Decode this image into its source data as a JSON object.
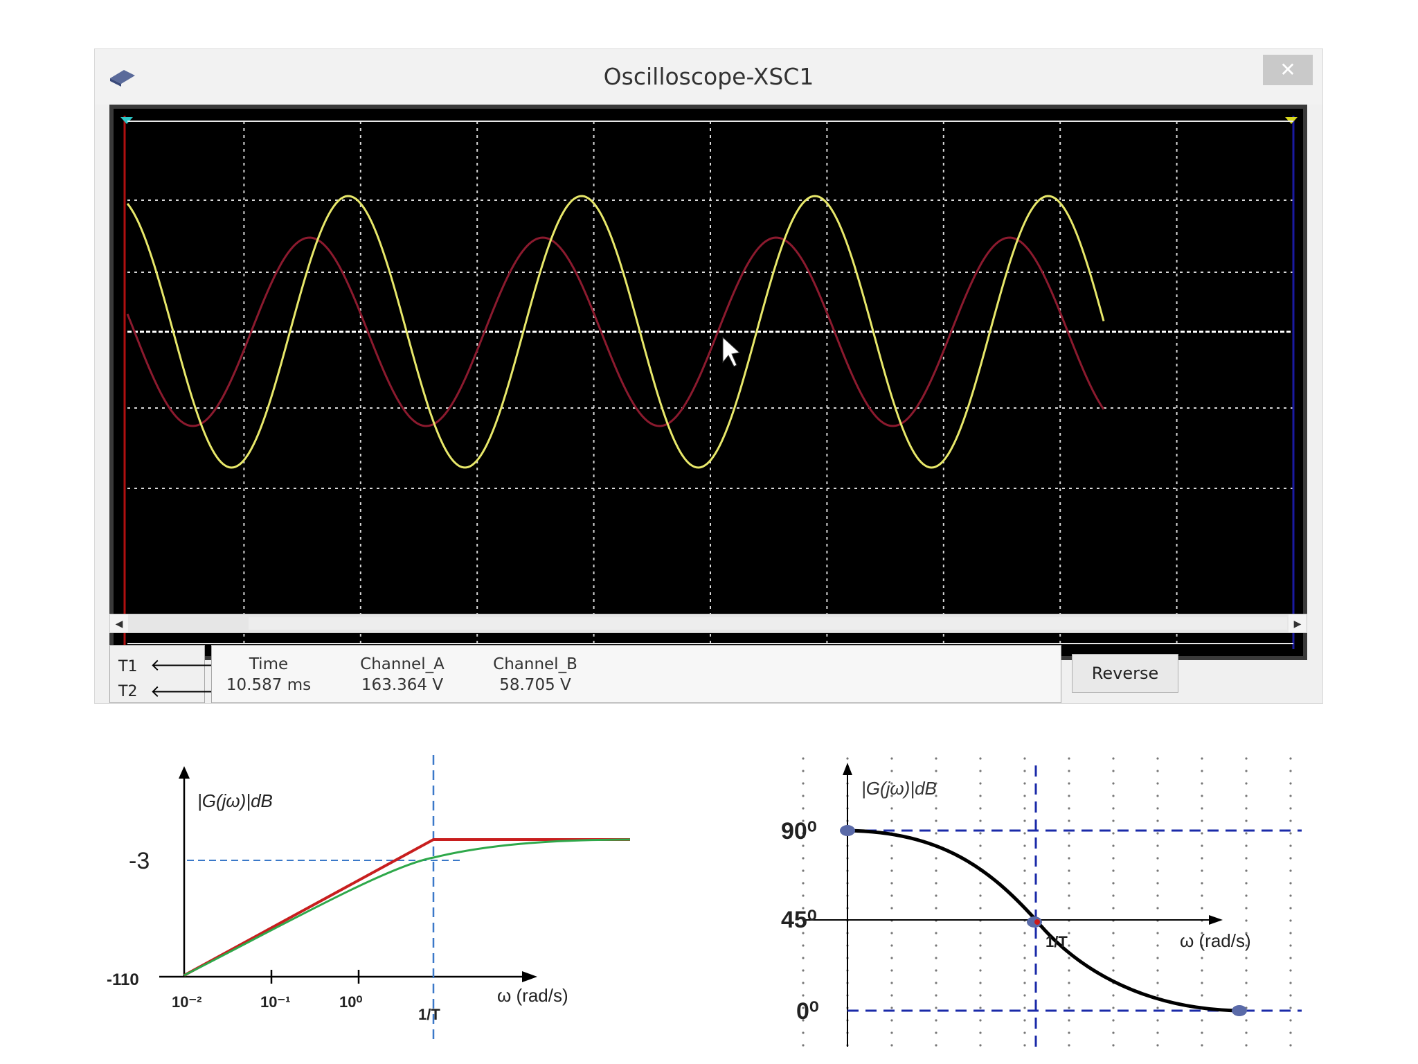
{
  "window": {
    "title": "Oscilloscope-XSC1",
    "close_label": "✕"
  },
  "colors": {
    "screen_bg": "#000000",
    "channel_a_trace": "#e8e86a",
    "channel_b_trace": "#8b1a2e",
    "grid": "#d8d8d8",
    "baseline": "#ffffff",
    "cursor_t1": "#b01010",
    "cursor_t2": "#1a1aa0"
  },
  "cursors": {
    "t1_label": "T1",
    "t2_label": "T2",
    "left_arrow": "🡐",
    "right_arrow": "🡒"
  },
  "readout": {
    "time_header": "Time",
    "time_value": "10.587 ms",
    "channel_a_header": "Channel_A",
    "channel_a_value": "163.364 V",
    "channel_b_header": "Channel_B",
    "channel_b_value": "58.705 V"
  },
  "reverse_button": "Reverse",
  "magnitude_plot": {
    "ylabel": "|G(jω)|dB",
    "xlabel": "ω (rad/s)",
    "y_ticks": [
      "-3",
      "-110"
    ],
    "x_ticks": [
      "10⁻²",
      "10⁻¹",
      "10⁰",
      "1/T"
    ],
    "asymptote_color": "#c81e1e",
    "actual_color": "#2ea84a",
    "guide_color": "#3a78c8"
  },
  "phase_plot": {
    "ylabel": "|G(jω)|dB",
    "xlabel": "ω (rad/s)",
    "y_ticks": [
      "90⁰",
      "45⁰",
      "0⁰"
    ],
    "x_marker": "1/T",
    "curve_color": "#000000",
    "guide_color": "#1a2aa8",
    "point_color": "#5a6aa8",
    "highlight_color": "#cc1a1a"
  }
}
